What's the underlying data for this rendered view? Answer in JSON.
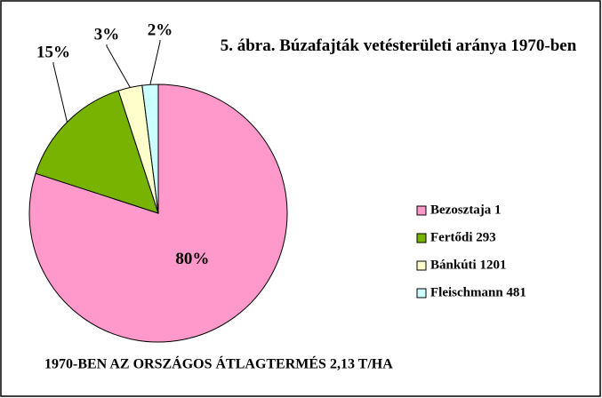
{
  "chart_data": {
    "type": "pie",
    "title": "5. ábra. Búzafajták vetésterületi aránya 1970-ben",
    "categories": [
      "Bezosztaja 1",
      "Fertődi  293",
      "Bánkúti 1201",
      "Fleischmann 481"
    ],
    "values": [
      80,
      15,
      3,
      2
    ],
    "value_labels": [
      "80%",
      "15%",
      "3%",
      "2%"
    ],
    "colors": [
      "#ff99cc",
      "#77b300",
      "#ffffcc",
      "#ccffff"
    ],
    "legend": "right",
    "annotation": "1970-BEN AZ ORSZÁGOS ÁTLAGTERMÉS 2,13 T/HA"
  }
}
